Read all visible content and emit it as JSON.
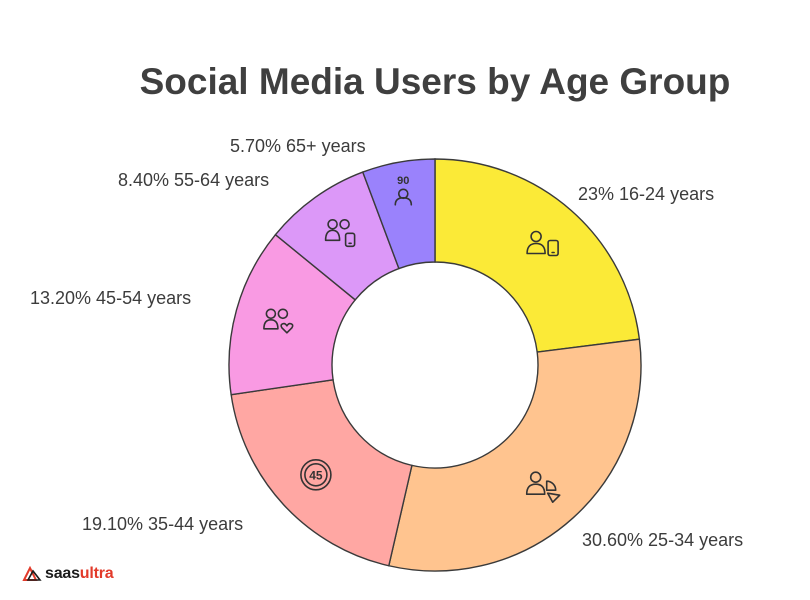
{
  "chart_data": {
    "type": "pie",
    "donut": true,
    "title": "Social Media Users by Age Group",
    "series": [
      {
        "label": "16-24 years",
        "value": 23,
        "value_text": "23%",
        "color": "#fbea37",
        "icon": "person-with-phone-icon"
      },
      {
        "label": "25-34 years",
        "value": 30.6,
        "value_text": "30.60%",
        "color": "#ffc48f",
        "icon": "person-with-shapes-icon"
      },
      {
        "label": "35-44 years",
        "value": 19.1,
        "value_text": "19.10%",
        "color": "#ffa7a3",
        "icon": "age-45-badge-icon"
      },
      {
        "label": "45-54 years",
        "value": 13.2,
        "value_text": "13.20%",
        "color": "#f99ae3",
        "icon": "couple-heart-icon"
      },
      {
        "label": "55-64 years",
        "value": 8.4,
        "value_text": "8.40%",
        "color": "#dc98f8",
        "icon": "couple-phone-icon"
      },
      {
        "label": "65+ years",
        "value": 5.7,
        "value_text": "5.70%",
        "color": "#9a82fc",
        "icon": "senior-90-icon"
      }
    ]
  },
  "badges": {
    "age45": "45",
    "age90": "90"
  },
  "brand": {
    "part1": "saas",
    "part2": "ultra",
    "accent_color": "#e23a2a"
  }
}
